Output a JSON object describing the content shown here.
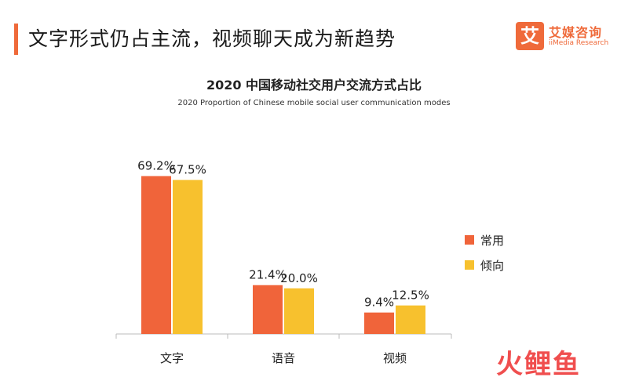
{
  "header": {
    "title": "文字形式仍占主流，视频聊天成为新趋势"
  },
  "logo": {
    "mark": "艾",
    "name_cn": "艾媒咨询",
    "name_en": "iiMedia Research"
  },
  "watermark": "火鲤鱼",
  "colors": {
    "accent": "#ef6a3a",
    "series_used": "#f0643a",
    "series_inclined": "#f7c12e"
  },
  "chart_data": {
    "type": "bar",
    "title": "2020 中国移动社交用户交流方式占比",
    "subtitle": "2020 Proportion of Chinese mobile social user communication modes",
    "categories": [
      "文字",
      "语音",
      "视频"
    ],
    "series": [
      {
        "name": "常用",
        "values": [
          69.2,
          21.4,
          9.4
        ],
        "labels": [
          "69.2%",
          "21.4%",
          "9.4%"
        ],
        "color": "#f0643a"
      },
      {
        "name": "倾向",
        "values": [
          67.5,
          20.0,
          12.5
        ],
        "labels": [
          "67.5%",
          "20.0%",
          "12.5%"
        ],
        "color": "#f7c12e"
      }
    ],
    "ylim": [
      0,
      100
    ],
    "grid": false,
    "legend": "right"
  }
}
